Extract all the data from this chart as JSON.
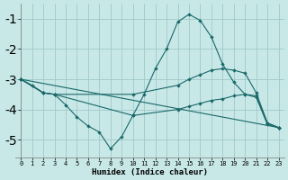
{
  "xlabel": "Humidex (Indice chaleur)",
  "background_color": "#c8e8e8",
  "grid_color": "#a0c8c8",
  "line_color": "#1a6868",
  "xlim": [
    -0.5,
    23.5
  ],
  "ylim": [
    -5.6,
    -0.5
  ],
  "yticks": [
    -5,
    -4,
    -3,
    -2,
    -1
  ],
  "xticks": [
    0,
    1,
    2,
    3,
    4,
    5,
    6,
    7,
    8,
    9,
    10,
    11,
    12,
    13,
    14,
    15,
    16,
    17,
    18,
    19,
    20,
    21,
    22,
    23
  ],
  "lines": [
    {
      "x": [
        0,
        1,
        2,
        3,
        4,
        5,
        6,
        7,
        8,
        9,
        10,
        11,
        12,
        13,
        14,
        15,
        16,
        17,
        18,
        19,
        20,
        21,
        22,
        23
      ],
      "y": [
        -3.0,
        -3.2,
        -3.45,
        -3.5,
        -3.85,
        -4.25,
        -4.55,
        -4.75,
        -5.3,
        -4.9,
        -4.2,
        -3.5,
        -2.65,
        -2.0,
        -1.1,
        -0.85,
        -1.05,
        -1.6,
        -2.5,
        -3.1,
        -3.5,
        -3.6,
        -4.5,
        -4.6
      ]
    },
    {
      "x": [
        0,
        2,
        3,
        10,
        14,
        15,
        16,
        17,
        18,
        19,
        20,
        21,
        22,
        23
      ],
      "y": [
        -3.0,
        -3.45,
        -3.5,
        -3.5,
        -3.2,
        -3.0,
        -2.85,
        -2.7,
        -2.65,
        -2.7,
        -2.8,
        -3.45,
        -4.45,
        -4.6
      ]
    },
    {
      "x": [
        0,
        2,
        3,
        10,
        14,
        15,
        16,
        17,
        18,
        19,
        20,
        21,
        22,
        23
      ],
      "y": [
        -3.0,
        -3.45,
        -3.5,
        -4.2,
        -4.0,
        -3.9,
        -3.8,
        -3.7,
        -3.65,
        -3.55,
        -3.5,
        -3.55,
        -4.45,
        -4.6
      ]
    },
    {
      "x": [
        0,
        23
      ],
      "y": [
        -3.0,
        -4.6
      ]
    }
  ]
}
